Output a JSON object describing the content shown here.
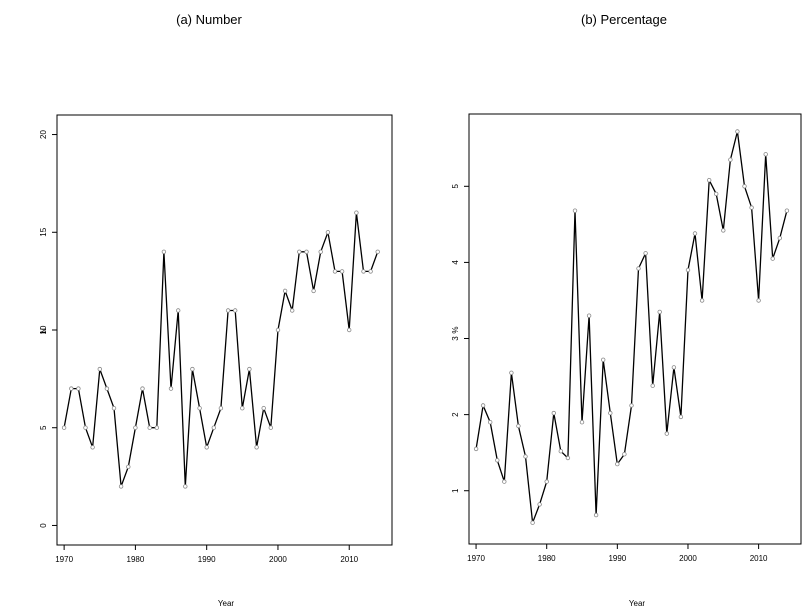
{
  "chart_data": [
    {
      "type": "line",
      "title": "(a) Number",
      "xlabel": "Year",
      "ylabel": "N",
      "xlim": [
        1969,
        2016
      ],
      "ylim": [
        -1,
        21
      ],
      "x_ticks": [
        1970,
        1980,
        1990,
        2000,
        2010
      ],
      "y_ticks": [
        0,
        5,
        10,
        15,
        20
      ],
      "grid": false,
      "x": [
        1970,
        1971,
        1972,
        1973,
        1974,
        1975,
        1976,
        1977,
        1978,
        1979,
        1980,
        1981,
        1982,
        1983,
        1984,
        1985,
        1986,
        1987,
        1988,
        1989,
        1990,
        1991,
        1992,
        1993,
        1994,
        1995,
        1996,
        1997,
        1998,
        1999,
        2000,
        2001,
        2002,
        2003,
        2004,
        2005,
        2006,
        2007,
        2008,
        2009,
        2010,
        2011,
        2012,
        2013,
        2014
      ],
      "values": [
        5,
        7,
        7,
        5,
        4,
        8,
        7,
        6,
        2,
        3,
        5,
        7,
        5,
        5,
        14,
        7,
        11,
        2,
        8,
        6,
        4,
        5,
        6,
        11,
        11,
        6,
        8,
        4,
        6,
        5,
        10,
        12,
        11,
        14,
        14,
        12,
        14,
        15,
        13,
        13,
        10,
        16,
        13,
        13,
        14
      ]
    },
    {
      "type": "line",
      "title": "(b) Percentage",
      "xlabel": "Year",
      "ylabel": "%",
      "xlim": [
        1969,
        2016
      ],
      "ylim": [
        0.3,
        5.95
      ],
      "x_ticks": [
        1970,
        1980,
        1990,
        2000,
        2010
      ],
      "y_ticks": [
        1,
        2,
        3,
        4,
        5
      ],
      "grid": false,
      "x": [
        1970,
        1971,
        1972,
        1973,
        1974,
        1975,
        1976,
        1977,
        1978,
        1979,
        1980,
        1981,
        1982,
        1983,
        1984,
        1985,
        1986,
        1987,
        1988,
        1989,
        1990,
        1991,
        1992,
        1993,
        1994,
        1995,
        1996,
        1997,
        1998,
        1999,
        2000,
        2001,
        2002,
        2003,
        2004,
        2005,
        2006,
        2007,
        2008,
        2009,
        2010,
        2011,
        2012,
        2013,
        2014
      ],
      "values": [
        1.55,
        2.12,
        1.9,
        1.4,
        1.12,
        2.55,
        1.85,
        1.45,
        0.58,
        0.82,
        1.12,
        2.02,
        1.52,
        1.43,
        4.68,
        1.9,
        3.3,
        0.68,
        2.72,
        2.02,
        1.35,
        1.48,
        2.12,
        3.92,
        4.12,
        2.38,
        3.35,
        1.75,
        2.62,
        1.97,
        3.9,
        4.38,
        3.5,
        5.08,
        4.9,
        4.42,
        5.35,
        5.72,
        5.0,
        4.72,
        3.5,
        5.42,
        4.05,
        4.32,
        4.68
      ]
    }
  ]
}
